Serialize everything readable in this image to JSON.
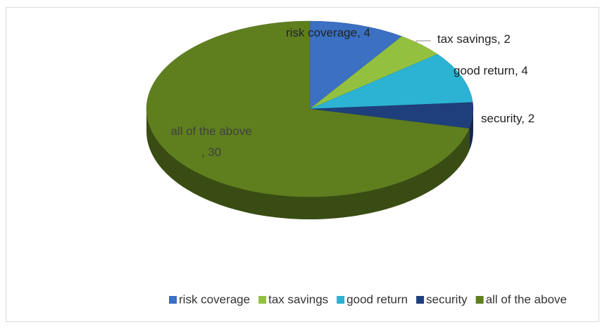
{
  "chart_data": {
    "type": "pie",
    "categories": [
      "risk coverage",
      "tax savings",
      "good return",
      "security",
      "all of the above"
    ],
    "values": [
      4,
      2,
      4,
      2,
      30
    ],
    "value_labels": [
      "risk coverage, 4",
      "tax savings, 2",
      "good return, 4",
      "security, 2",
      "all of the above\n, 30"
    ],
    "colors": [
      "#3b70c2",
      "#93c13f",
      "#2cb2d3",
      "#1f3f7c",
      "#5f7f1f"
    ],
    "legend": "bottom"
  }
}
